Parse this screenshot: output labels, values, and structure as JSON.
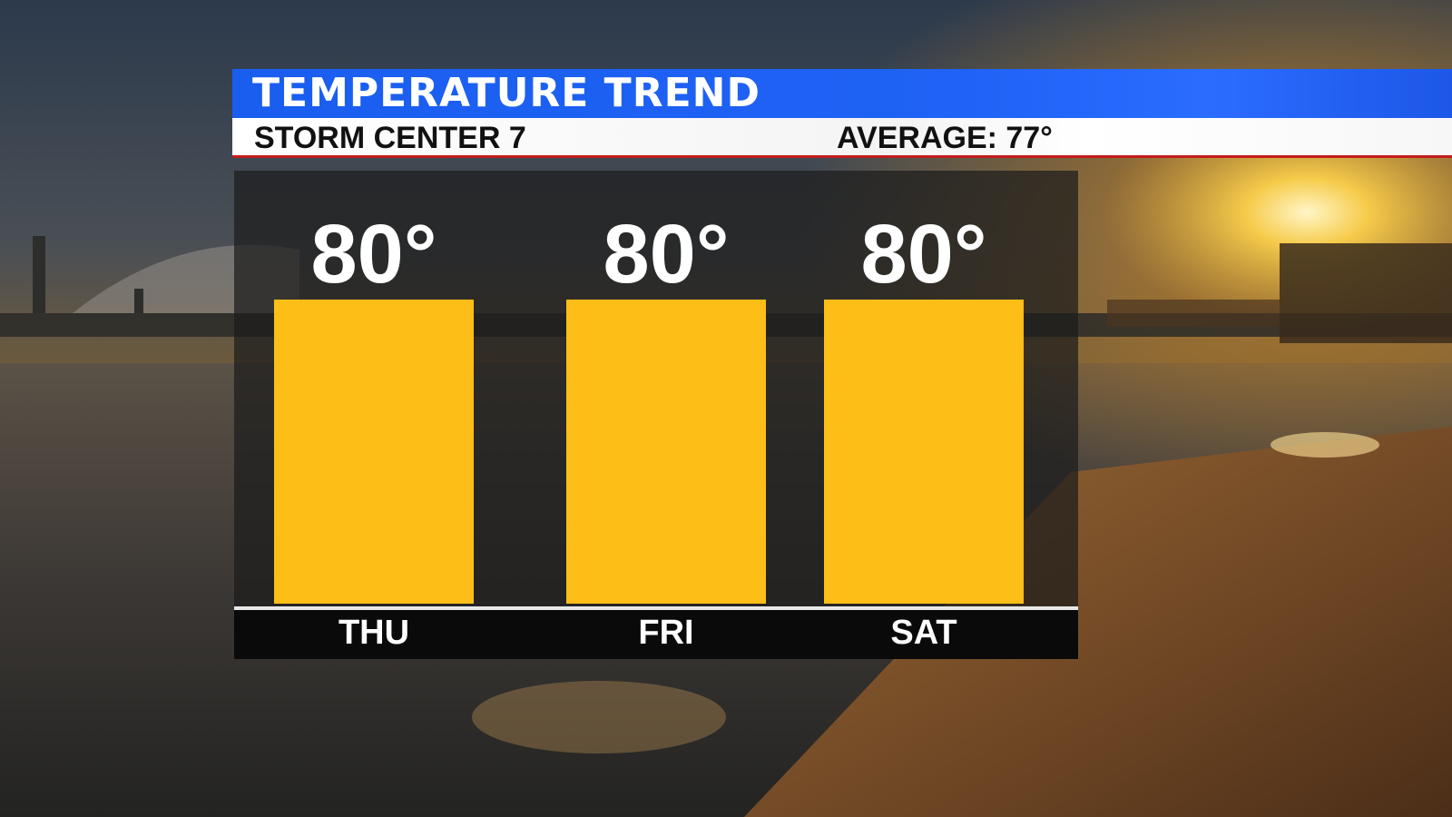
{
  "header": {
    "title": "TEMPERATURE TREND",
    "station": "STORM CENTER 7",
    "average": "AVERAGE: 77°"
  },
  "colors": {
    "title_bar": "#1f62f5",
    "bar_fill": "#fdbe18",
    "panel": "#1c1c1c",
    "accent_line": "#c21d1d"
  },
  "chart_data": {
    "type": "bar",
    "title": "TEMPERATURE TREND",
    "categories": [
      "THU",
      "FRI",
      "SAT"
    ],
    "values": [
      80,
      80,
      80
    ],
    "value_labels": [
      "80°",
      "80°",
      "80°"
    ],
    "grid": false
  }
}
